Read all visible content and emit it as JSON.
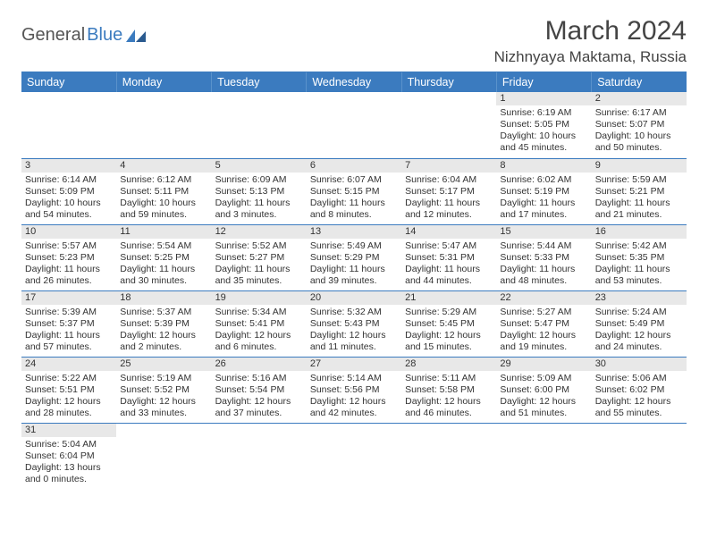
{
  "logo": {
    "text1": "General",
    "text2": "Blue"
  },
  "title": "March 2024",
  "location": "Nizhnyaya Maktama, Russia",
  "colors": {
    "header_bg": "#3b7bbf",
    "header_text": "#ffffff",
    "daynum_bg": "#e8e8e8",
    "rule": "#3b7bbf",
    "body_bg": "#ffffff",
    "text": "#333333"
  },
  "typography": {
    "title_fontsize": 30,
    "location_fontsize": 17,
    "dayheader_fontsize": 12.5,
    "cell_fontsize": 10.5
  },
  "day_headers": [
    "Sunday",
    "Monday",
    "Tuesday",
    "Wednesday",
    "Thursday",
    "Friday",
    "Saturday"
  ],
  "weeks": [
    [
      {
        "n": "",
        "sr": "",
        "ss": "",
        "dl": ""
      },
      {
        "n": "",
        "sr": "",
        "ss": "",
        "dl": ""
      },
      {
        "n": "",
        "sr": "",
        "ss": "",
        "dl": ""
      },
      {
        "n": "",
        "sr": "",
        "ss": "",
        "dl": ""
      },
      {
        "n": "",
        "sr": "",
        "ss": "",
        "dl": ""
      },
      {
        "n": "1",
        "sr": "Sunrise: 6:19 AM",
        "ss": "Sunset: 5:05 PM",
        "dl": "Daylight: 10 hours and 45 minutes."
      },
      {
        "n": "2",
        "sr": "Sunrise: 6:17 AM",
        "ss": "Sunset: 5:07 PM",
        "dl": "Daylight: 10 hours and 50 minutes."
      }
    ],
    [
      {
        "n": "3",
        "sr": "Sunrise: 6:14 AM",
        "ss": "Sunset: 5:09 PM",
        "dl": "Daylight: 10 hours and 54 minutes."
      },
      {
        "n": "4",
        "sr": "Sunrise: 6:12 AM",
        "ss": "Sunset: 5:11 PM",
        "dl": "Daylight: 10 hours and 59 minutes."
      },
      {
        "n": "5",
        "sr": "Sunrise: 6:09 AM",
        "ss": "Sunset: 5:13 PM",
        "dl": "Daylight: 11 hours and 3 minutes."
      },
      {
        "n": "6",
        "sr": "Sunrise: 6:07 AM",
        "ss": "Sunset: 5:15 PM",
        "dl": "Daylight: 11 hours and 8 minutes."
      },
      {
        "n": "7",
        "sr": "Sunrise: 6:04 AM",
        "ss": "Sunset: 5:17 PM",
        "dl": "Daylight: 11 hours and 12 minutes."
      },
      {
        "n": "8",
        "sr": "Sunrise: 6:02 AM",
        "ss": "Sunset: 5:19 PM",
        "dl": "Daylight: 11 hours and 17 minutes."
      },
      {
        "n": "9",
        "sr": "Sunrise: 5:59 AM",
        "ss": "Sunset: 5:21 PM",
        "dl": "Daylight: 11 hours and 21 minutes."
      }
    ],
    [
      {
        "n": "10",
        "sr": "Sunrise: 5:57 AM",
        "ss": "Sunset: 5:23 PM",
        "dl": "Daylight: 11 hours and 26 minutes."
      },
      {
        "n": "11",
        "sr": "Sunrise: 5:54 AM",
        "ss": "Sunset: 5:25 PM",
        "dl": "Daylight: 11 hours and 30 minutes."
      },
      {
        "n": "12",
        "sr": "Sunrise: 5:52 AM",
        "ss": "Sunset: 5:27 PM",
        "dl": "Daylight: 11 hours and 35 minutes."
      },
      {
        "n": "13",
        "sr": "Sunrise: 5:49 AM",
        "ss": "Sunset: 5:29 PM",
        "dl": "Daylight: 11 hours and 39 minutes."
      },
      {
        "n": "14",
        "sr": "Sunrise: 5:47 AM",
        "ss": "Sunset: 5:31 PM",
        "dl": "Daylight: 11 hours and 44 minutes."
      },
      {
        "n": "15",
        "sr": "Sunrise: 5:44 AM",
        "ss": "Sunset: 5:33 PM",
        "dl": "Daylight: 11 hours and 48 minutes."
      },
      {
        "n": "16",
        "sr": "Sunrise: 5:42 AM",
        "ss": "Sunset: 5:35 PM",
        "dl": "Daylight: 11 hours and 53 minutes."
      }
    ],
    [
      {
        "n": "17",
        "sr": "Sunrise: 5:39 AM",
        "ss": "Sunset: 5:37 PM",
        "dl": "Daylight: 11 hours and 57 minutes."
      },
      {
        "n": "18",
        "sr": "Sunrise: 5:37 AM",
        "ss": "Sunset: 5:39 PM",
        "dl": "Daylight: 12 hours and 2 minutes."
      },
      {
        "n": "19",
        "sr": "Sunrise: 5:34 AM",
        "ss": "Sunset: 5:41 PM",
        "dl": "Daylight: 12 hours and 6 minutes."
      },
      {
        "n": "20",
        "sr": "Sunrise: 5:32 AM",
        "ss": "Sunset: 5:43 PM",
        "dl": "Daylight: 12 hours and 11 minutes."
      },
      {
        "n": "21",
        "sr": "Sunrise: 5:29 AM",
        "ss": "Sunset: 5:45 PM",
        "dl": "Daylight: 12 hours and 15 minutes."
      },
      {
        "n": "22",
        "sr": "Sunrise: 5:27 AM",
        "ss": "Sunset: 5:47 PM",
        "dl": "Daylight: 12 hours and 19 minutes."
      },
      {
        "n": "23",
        "sr": "Sunrise: 5:24 AM",
        "ss": "Sunset: 5:49 PM",
        "dl": "Daylight: 12 hours and 24 minutes."
      }
    ],
    [
      {
        "n": "24",
        "sr": "Sunrise: 5:22 AM",
        "ss": "Sunset: 5:51 PM",
        "dl": "Daylight: 12 hours and 28 minutes."
      },
      {
        "n": "25",
        "sr": "Sunrise: 5:19 AM",
        "ss": "Sunset: 5:52 PM",
        "dl": "Daylight: 12 hours and 33 minutes."
      },
      {
        "n": "26",
        "sr": "Sunrise: 5:16 AM",
        "ss": "Sunset: 5:54 PM",
        "dl": "Daylight: 12 hours and 37 minutes."
      },
      {
        "n": "27",
        "sr": "Sunrise: 5:14 AM",
        "ss": "Sunset: 5:56 PM",
        "dl": "Daylight: 12 hours and 42 minutes."
      },
      {
        "n": "28",
        "sr": "Sunrise: 5:11 AM",
        "ss": "Sunset: 5:58 PM",
        "dl": "Daylight: 12 hours and 46 minutes."
      },
      {
        "n": "29",
        "sr": "Sunrise: 5:09 AM",
        "ss": "Sunset: 6:00 PM",
        "dl": "Daylight: 12 hours and 51 minutes."
      },
      {
        "n": "30",
        "sr": "Sunrise: 5:06 AM",
        "ss": "Sunset: 6:02 PM",
        "dl": "Daylight: 12 hours and 55 minutes."
      }
    ],
    [
      {
        "n": "31",
        "sr": "Sunrise: 5:04 AM",
        "ss": "Sunset: 6:04 PM",
        "dl": "Daylight: 13 hours and 0 minutes."
      },
      {
        "n": "",
        "sr": "",
        "ss": "",
        "dl": ""
      },
      {
        "n": "",
        "sr": "",
        "ss": "",
        "dl": ""
      },
      {
        "n": "",
        "sr": "",
        "ss": "",
        "dl": ""
      },
      {
        "n": "",
        "sr": "",
        "ss": "",
        "dl": ""
      },
      {
        "n": "",
        "sr": "",
        "ss": "",
        "dl": ""
      },
      {
        "n": "",
        "sr": "",
        "ss": "",
        "dl": ""
      }
    ]
  ]
}
